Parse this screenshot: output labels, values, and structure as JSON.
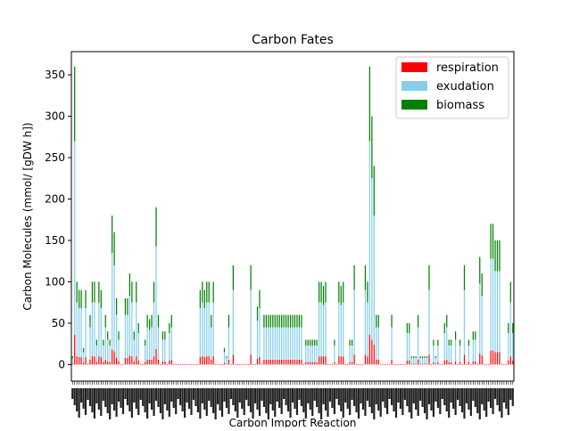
{
  "chart_data": {
    "type": "bar",
    "stacked": true,
    "title": "Carbon Fates",
    "xlabel": "Carbon Import Reaction",
    "ylabel": "Carbon Molecules (mmol/ [gDW h])",
    "ylim": [
      -20,
      378
    ],
    "yticks": [
      0,
      50,
      100,
      150,
      200,
      250,
      300,
      350
    ],
    "grid": false,
    "legend": "top-right",
    "x_tick_labels_legible": false,
    "colors": {
      "respiration": "#ff0000",
      "exudation": "#87ceeb",
      "biomass": "#008000"
    },
    "series": [
      {
        "name": "respiration",
        "values": [
          8,
          30,
          6,
          0,
          5,
          10,
          3,
          0,
          6,
          8,
          4,
          0,
          35,
          10,
          0,
          5,
          8,
          3,
          0,
          12,
          6,
          25,
          10,
          8,
          0,
          4,
          5,
          0,
          12,
          0,
          0,
          9,
          0,
          0,
          5,
          0,
          3,
          20,
          0,
          0,
          10,
          8,
          2,
          0,
          6,
          15,
          4,
          0,
          8,
          20,
          0,
          0,
          3,
          0,
          0,
          0,
          0,
          0,
          18,
          0,
          2,
          10,
          0,
          0,
          0,
          0,
          0,
          0,
          0,
          0,
          0,
          0,
          0,
          0,
          0,
          0,
          0,
          0,
          0,
          0,
          0,
          0,
          0,
          0,
          0,
          0,
          0,
          0,
          0,
          0,
          0,
          0,
          0,
          0,
          0,
          0,
          8,
          0,
          0,
          0,
          0,
          0,
          0,
          0,
          0,
          0,
          0,
          0,
          0,
          0,
          0,
          0,
          0,
          0,
          0,
          0,
          0,
          0,
          0,
          0,
          0,
          0,
          0,
          0,
          0,
          0,
          0,
          0,
          0,
          0,
          0,
          0,
          0,
          0,
          0,
          0,
          0,
          0,
          0,
          0,
          0,
          0,
          0,
          0,
          0,
          0,
          0,
          0,
          0,
          0,
          0,
          0,
          0,
          0,
          0,
          0,
          0,
          0,
          0,
          0,
          0,
          0,
          0,
          0,
          0,
          0,
          0,
          0,
          0,
          0,
          0,
          0,
          0,
          0,
          0,
          0,
          0,
          0,
          0,
          0,
          0,
          0,
          0,
          0,
          0,
          0,
          0,
          0,
          0,
          0,
          0,
          0,
          0,
          0,
          0,
          0,
          0,
          0,
          0,
          0,
          0,
          0,
          0,
          0,
          0,
          0,
          0,
          0,
          0,
          0,
          0,
          0,
          0,
          0,
          0,
          0,
          0,
          0,
          0,
          0,
          0,
          0,
          0,
          0,
          0,
          0,
          0,
          0,
          0,
          0,
          0,
          0,
          0,
          0,
          0,
          0,
          0,
          0,
          0,
          0,
          0,
          0,
          0,
          0
        ]
      },
      {
        "name": "exudation",
        "values": [
          0,
          240,
          60,
          0,
          50,
          0,
          20,
          0,
          0,
          0,
          0,
          0,
          0,
          60,
          0,
          0,
          0,
          60,
          70,
          0,
          0,
          0,
          0,
          0,
          0,
          0,
          0,
          0,
          0,
          0,
          0,
          0,
          0,
          0,
          0,
          0,
          0,
          0,
          0,
          0,
          0,
          0,
          0,
          0,
          0,
          0,
          0,
          0,
          0,
          0,
          0,
          0,
          0,
          0,
          0,
          0,
          0,
          0,
          0,
          0,
          0,
          0,
          0,
          0,
          0,
          0,
          0,
          0,
          0,
          0,
          0,
          0,
          0,
          0,
          0,
          0,
          0,
          0,
          0,
          0,
          0,
          0,
          0,
          0,
          0,
          0,
          0,
          0,
          0,
          0,
          0,
          0,
          0,
          0,
          0,
          0,
          0,
          0,
          0,
          0,
          0,
          0,
          0,
          0,
          0,
          0,
          0,
          0,
          0,
          0,
          0,
          0,
          0,
          0,
          0,
          0,
          0,
          0,
          0,
          0,
          0,
          0,
          0,
          0,
          0,
          0,
          0,
          0,
          0,
          0,
          0,
          0,
          0,
          0,
          0,
          0,
          0,
          0,
          0,
          0,
          0,
          0,
          0,
          0,
          0,
          0,
          0,
          0,
          0,
          0,
          0,
          0,
          0,
          0,
          0,
          0,
          0,
          0,
          0,
          0,
          0,
          0,
          0,
          0,
          0,
          0,
          0,
          0,
          0,
          0,
          0,
          0,
          0,
          0,
          0,
          0,
          0,
          0,
          0,
          0,
          0,
          0,
          0,
          0,
          0,
          0,
          0,
          0,
          0,
          0,
          0,
          0,
          0,
          0,
          0,
          0,
          0,
          0,
          0,
          0,
          0,
          0,
          0,
          0,
          0,
          0,
          0,
          0,
          0,
          0,
          0,
          0,
          0,
          0,
          0,
          0,
          0,
          0,
          0,
          0,
          0,
          0,
          0,
          0,
          0,
          0,
          0,
          0,
          0,
          0,
          0,
          0,
          0,
          0,
          0,
          0,
          0,
          0,
          0,
          0,
          0
        ]
      },
      {
        "name": "biomass",
        "values": [
          0,
          90,
          20,
          0,
          20,
          0,
          7,
          0,
          0,
          0,
          0,
          0,
          0,
          20,
          0,
          0,
          0,
          20,
          20,
          0,
          0,
          0,
          0,
          0,
          0,
          0,
          0,
          0,
          0,
          0,
          0,
          0,
          0,
          0,
          0,
          0,
          0,
          0,
          0,
          0,
          0,
          0,
          0,
          0,
          0,
          0,
          0,
          0,
          0,
          0,
          0,
          0,
          0,
          0,
          0,
          0,
          0,
          0,
          0,
          0,
          0,
          0,
          0,
          0,
          0,
          0,
          0,
          0,
          0,
          0,
          0,
          0,
          0,
          0,
          0,
          0,
          0,
          0,
          0,
          0,
          0,
          0,
          0,
          0,
          0,
          0,
          0,
          0,
          0,
          0,
          0,
          0,
          0,
          0,
          0,
          0,
          0,
          0,
          0,
          0,
          0,
          0,
          0,
          0,
          0,
          0,
          0,
          0,
          0,
          0,
          0,
          0,
          0,
          0,
          0,
          0,
          0,
          0,
          0,
          0,
          0,
          0,
          0,
          0,
          0,
          0,
          0,
          0,
          0,
          0,
          0,
          0,
          0,
          0,
          0,
          0,
          0,
          0,
          0,
          0,
          0,
          0,
          0,
          0,
          0,
          0,
          0,
          0,
          0,
          0,
          0,
          0,
          0,
          0,
          0,
          0,
          0,
          0,
          0,
          0,
          0,
          0,
          0,
          0,
          0,
          0,
          0,
          0,
          0,
          0,
          0,
          0,
          0,
          0,
          0,
          0,
          0,
          0,
          0,
          0,
          0,
          0,
          0,
          0,
          0,
          0,
          0,
          0,
          0,
          0,
          0,
          0,
          0,
          0,
          0,
          0,
          0,
          0,
          0,
          0,
          0,
          0,
          0,
          0,
          0,
          0,
          0,
          0,
          0,
          0,
          0,
          0,
          0,
          0,
          0,
          0,
          0,
          0,
          0,
          0,
          0,
          0,
          0,
          0,
          0,
          0,
          0,
          0,
          0,
          0,
          0,
          0,
          0,
          0,
          0,
          0,
          0,
          0,
          0,
          0,
          0
        ]
      }
    ],
    "totals_sample": [
      10,
      360,
      100,
      90,
      90,
      20,
      90,
      0,
      60,
      100,
      100,
      30,
      100,
      90,
      30,
      60,
      40,
      30,
      180,
      160,
      80,
      40,
      0,
      0,
      80,
      80,
      110,
      100,
      40,
      100,
      50,
      0,
      0,
      30,
      60,
      55,
      60,
      100,
      190,
      60,
      0,
      40,
      40,
      0,
      50,
      60,
      0,
      0,
      0,
      0,
      0,
      0,
      0,
      0,
      0,
      0,
      0,
      0,
      90,
      100,
      90,
      100,
      100,
      60,
      100,
      0,
      0,
      0,
      0,
      20,
      10,
      60,
      0,
      120,
      0,
      0,
      0,
      0,
      0,
      0,
      0,
      120,
      0,
      0,
      70,
      90,
      0,
      60,
      60,
      60,
      60,
      60,
      60,
      60,
      60,
      60,
      60,
      60,
      60,
      60,
      60,
      60,
      60,
      60,
      60,
      0,
      30,
      30,
      30,
      30,
      30,
      30,
      100,
      100,
      95,
      100,
      0,
      0,
      0,
      30,
      0,
      100,
      95,
      100,
      0,
      0,
      30,
      30,
      120,
      0,
      0,
      0,
      0,
      120,
      100,
      360,
      300,
      240,
      60,
      60,
      0,
      0,
      0,
      0,
      0,
      60,
      0,
      0,
      0,
      0,
      0,
      0,
      50,
      50,
      10,
      10,
      10,
      60,
      10,
      10,
      10,
      10,
      120,
      0,
      30,
      10,
      30,
      0,
      0,
      50,
      60,
      30,
      30,
      0,
      40,
      0,
      30,
      0,
      120,
      0,
      30,
      0,
      40,
      40,
      0,
      130,
      110,
      0,
      0,
      0,
      170,
      170,
      150,
      150,
      150,
      0,
      0,
      0,
      50,
      100,
      50
    ]
  }
}
